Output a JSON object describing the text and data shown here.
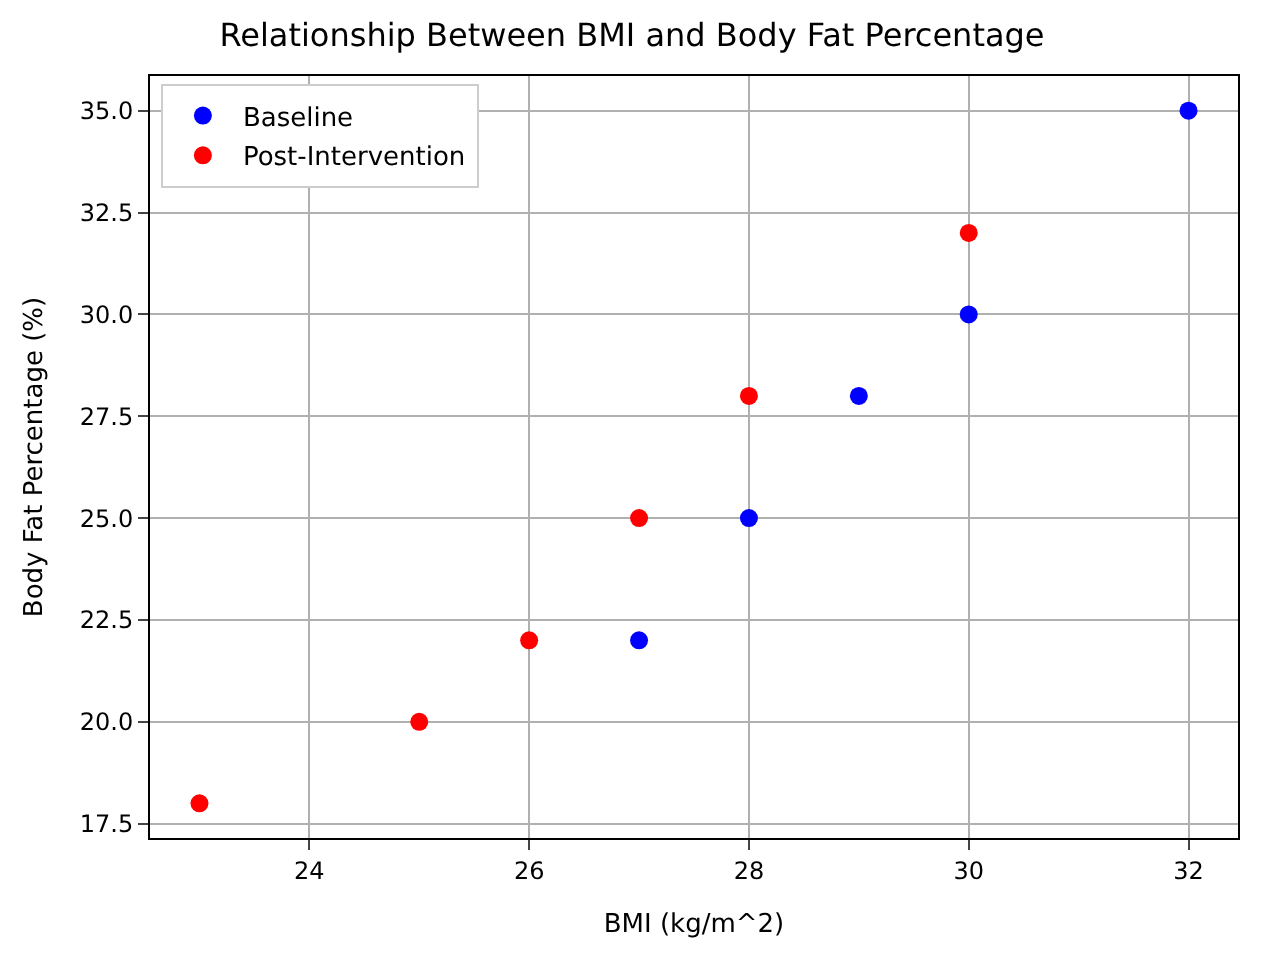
{
  "chart_data": {
    "type": "scatter",
    "title": "Relationship Between BMI and Body Fat Percentage",
    "xlabel": "BMI (kg/m^2)",
    "ylabel": "Body Fat Percentage (%)",
    "series": [
      {
        "name": "Baseline",
        "color": "#0000ff",
        "x": [
          27,
          28,
          29,
          30,
          32
        ],
        "values": [
          22,
          25,
          28,
          30,
          35
        ]
      },
      {
        "name": "Post-Intervention",
        "color": "#ff0000",
        "x": [
          23,
          25,
          26,
          27,
          28,
          30
        ],
        "values": [
          18,
          20,
          22,
          25,
          28,
          32
        ]
      }
    ],
    "xlim": [
      22.55,
      32.45
    ],
    "xticks": [
      24,
      26,
      28,
      30,
      32
    ],
    "ylim": [
      17.15,
      35.85
    ],
    "yticks": [
      17.5,
      {
        "value": 20,
        "label": "20.0"
      },
      22.5,
      {
        "value": 25,
        "label": "25.0"
      },
      27.5,
      {
        "value": 30,
        "label": "30.0"
      },
      32.5,
      {
        "value": 35,
        "label": "35.0"
      }
    ],
    "grid": true,
    "legend": "top left",
    "marker": "circle"
  }
}
